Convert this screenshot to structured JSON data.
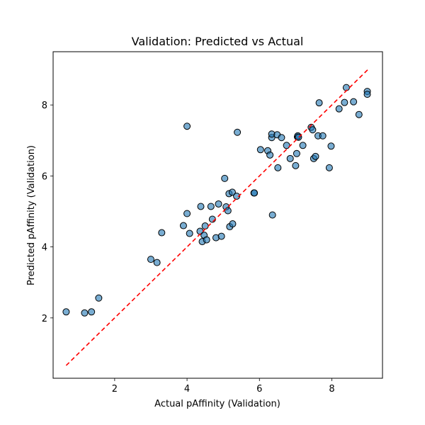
{
  "chart_data": {
    "type": "scatter",
    "title": "Validation: Predicted vs Actual",
    "xlabel": "Actual pAffinity (Validation)",
    "ylabel": "Predicted pAffinity (Validation)",
    "xlim": [
      0.3,
      9.4
    ],
    "ylim": [
      0.3,
      9.5
    ],
    "xticks": [
      2,
      4,
      6,
      8
    ],
    "yticks": [
      2,
      4,
      6,
      8
    ],
    "grid": false,
    "reference_line": {
      "type": "y=x",
      "from": 0.66,
      "to": 9.0,
      "color": "#ff0000",
      "style": "dashed"
    },
    "point_color": "#1f77b4",
    "point_edge_color": "#000000",
    "series": [
      {
        "x": [
          0.66,
          1.17,
          1.36,
          1.56,
          3.0,
          3.17,
          3.3,
          3.9,
          4.0,
          4.07,
          4.0,
          4.36,
          4.38,
          4.42,
          4.47,
          4.5,
          4.54,
          4.66,
          4.7,
          4.8,
          4.87,
          4.95,
          5.04,
          5.08,
          5.13,
          5.16,
          5.18,
          5.25,
          5.26,
          5.37,
          5.39,
          5.85,
          5.86,
          6.03,
          6.23,
          6.29,
          6.34,
          6.34,
          6.36,
          6.49,
          6.51,
          6.61,
          6.75,
          6.85,
          7.0,
          7.03,
          7.05,
          7.06,
          7.08,
          7.2,
          7.43,
          7.47,
          7.5,
          7.55,
          7.62,
          7.65,
          7.75,
          7.93,
          7.98,
          8.2,
          8.35,
          8.4,
          8.6,
          8.75,
          8.98,
          8.98
        ],
        "y": [
          2.17,
          2.14,
          2.17,
          2.56,
          3.65,
          3.56,
          4.4,
          4.6,
          7.4,
          4.38,
          4.94,
          4.44,
          5.14,
          4.15,
          4.33,
          4.59,
          4.2,
          5.14,
          4.78,
          4.26,
          5.21,
          4.3,
          5.93,
          5.13,
          5.02,
          5.5,
          4.57,
          5.54,
          4.65,
          5.43,
          7.23,
          5.52,
          5.52,
          6.74,
          6.71,
          6.59,
          7.08,
          7.18,
          4.9,
          7.16,
          6.23,
          7.08,
          6.86,
          6.49,
          6.29,
          6.63,
          7.1,
          7.13,
          7.09,
          6.86,
          7.37,
          7.3,
          6.49,
          6.55,
          7.13,
          8.06,
          7.13,
          6.23,
          6.84,
          7.89,
          8.07,
          8.49,
          8.09,
          7.73,
          8.38,
          8.3
        ]
      }
    ]
  }
}
